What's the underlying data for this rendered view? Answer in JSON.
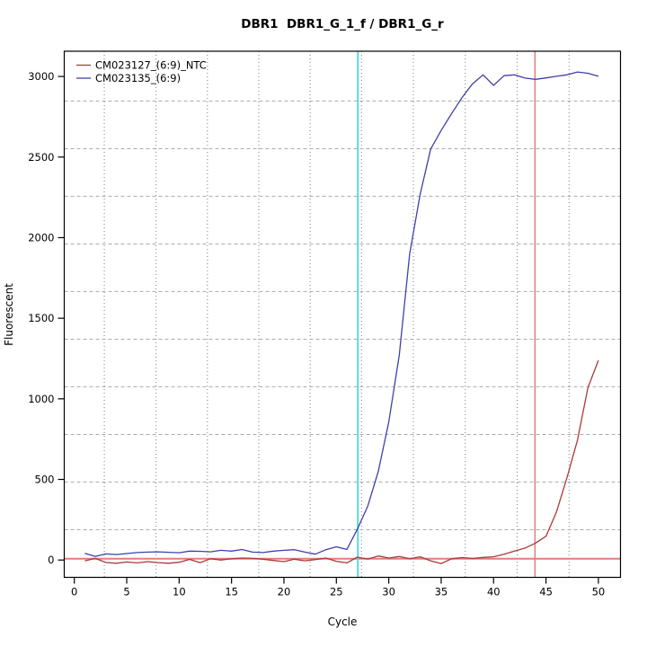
{
  "title": "DBR1  DBR1_G_1_f / DBR1_G_r",
  "axes": {
    "xlabel": "Cycle",
    "ylabel": "Fluorescent",
    "x_ticks": [
      0,
      5,
      10,
      15,
      20,
      25,
      30,
      35,
      40,
      45,
      50
    ],
    "y_ticks": [
      0,
      500,
      1000,
      1500,
      2000,
      2500,
      3000
    ]
  },
  "legend": {
    "entries": [
      {
        "label": "CM023127_(6:9)_NTC",
        "color": "#AA3939"
      },
      {
        "label": "CM023135_(6:9)",
        "color": "#4040AA"
      }
    ]
  },
  "chart_data": {
    "type": "line",
    "title": "DBR1  DBR1_G_1_f / DBR1_G_r",
    "xlabel": "Cycle",
    "ylabel": "Fluorescent",
    "xlim": [
      -0.96,
      51.96
    ],
    "ylim": [
      -107,
      3143
    ],
    "grid": {
      "on": true,
      "v_lines": [
        2.86,
        7.8,
        12.7,
        17.6,
        22.5,
        27.4,
        32.35,
        37.3,
        42.25,
        47.2
      ],
      "h_lines": [
        188,
        484,
        779,
        1075,
        1370,
        1666,
        1961,
        2257,
        2552,
        2848
      ]
    },
    "legend_position": "top-left",
    "x_start": 1,
    "series": [
      {
        "name": "CM023127_(6:9)_NTC",
        "color": "#AA3939",
        "values": [
          -5,
          10,
          -15,
          -20,
          -12,
          -18,
          -10,
          -16,
          -20,
          -14,
          4,
          -16,
          8,
          0,
          8,
          12,
          10,
          5,
          -3,
          -10,
          5,
          -5,
          3,
          12,
          -8,
          -18,
          18,
          6,
          25,
          12,
          22,
          8,
          20,
          -5,
          -22,
          8,
          15,
          10,
          16,
          20,
          36,
          55,
          74,
          105,
          148,
          297,
          510,
          743,
          1068,
          1239
        ]
      },
      {
        "name": "CM023135_(6:9)",
        "color": "#4040AA",
        "values": [
          42,
          22,
          38,
          34,
          40,
          46,
          49,
          51,
          48,
          45,
          55,
          54,
          51,
          60,
          55,
          65,
          49,
          46,
          55,
          60,
          64,
          49,
          36,
          64,
          82,
          66,
          190,
          335,
          550,
          855,
          1270,
          1900,
          2270,
          2550,
          2665,
          2770,
          2870,
          2955,
          3010,
          2945,
          3005,
          3010,
          2990,
          2982,
          2991,
          3001,
          3010,
          3028,
          3020,
          3001
        ]
      }
    ],
    "reference_lines": {
      "threshold_y": 8,
      "threshold_color": "#E07F7F",
      "ct_vline_x": 27.05,
      "ct_vline_color": "#5CD9DD",
      "late_vline_x": 43.95,
      "late_vline_color": "#E07F7F"
    }
  }
}
